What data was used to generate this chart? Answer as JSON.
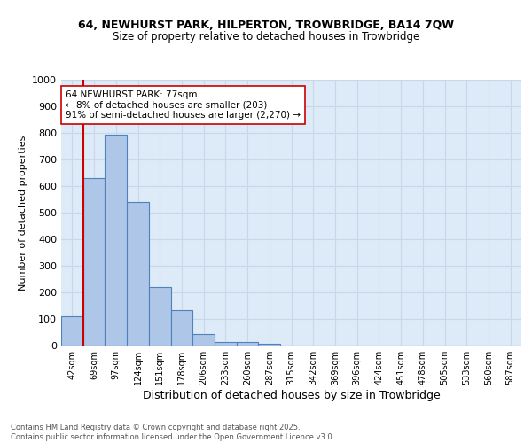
{
  "title1": "64, NEWHURST PARK, HILPERTON, TROWBRIDGE, BA14 7QW",
  "title2": "Size of property relative to detached houses in Trowbridge",
  "xlabel": "Distribution of detached houses by size in Trowbridge",
  "ylabel": "Number of detached properties",
  "bin_labels": [
    "42sqm",
    "69sqm",
    "97sqm",
    "124sqm",
    "151sqm",
    "178sqm",
    "206sqm",
    "233sqm",
    "260sqm",
    "287sqm",
    "315sqm",
    "342sqm",
    "369sqm",
    "396sqm",
    "424sqm",
    "451sqm",
    "478sqm",
    "505sqm",
    "533sqm",
    "560sqm",
    "587sqm"
  ],
  "bar_values": [
    110,
    630,
    795,
    540,
    220,
    135,
    42,
    15,
    13,
    8,
    0,
    0,
    0,
    0,
    0,
    0,
    0,
    0,
    0,
    0,
    0
  ],
  "bar_color": "#aec6e8",
  "bar_edge_color": "#4f81bd",
  "vline_x_offset": 0.5,
  "vline_bin": 1,
  "vline_color": "#cc0000",
  "annotation_text": "64 NEWHURST PARK: 77sqm\n← 8% of detached houses are smaller (203)\n91% of semi-detached houses are larger (2,270) →",
  "annotation_box_color": "#ffffff",
  "annotation_box_edge": "#cc0000",
  "ylim": [
    0,
    1000
  ],
  "yticks": [
    0,
    100,
    200,
    300,
    400,
    500,
    600,
    700,
    800,
    900,
    1000
  ],
  "footnote": "Contains HM Land Registry data © Crown copyright and database right 2025.\nContains public sector information licensed under the Open Government Licence v3.0.",
  "grid_color": "#c8d8e8",
  "background_color": "#ddeaf7"
}
